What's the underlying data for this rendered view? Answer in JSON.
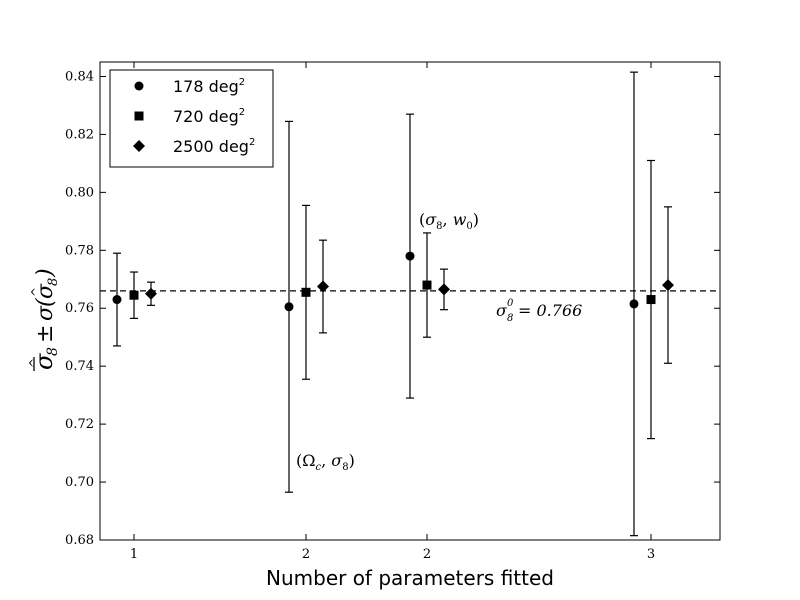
{
  "chart_data": {
    "type": "scatter",
    "title": "",
    "xlabel": "Number of parameters fitted",
    "ylabel": "σ̂̄₈ ± σ(σ̂₈)",
    "ylim": [
      0.68,
      0.845
    ],
    "yticks": [
      "0.68",
      "0.70",
      "0.72",
      "0.74",
      "0.76",
      "0.78",
      "0.80",
      "0.82",
      "0.84"
    ],
    "groups": [
      {
        "tick": "1",
        "annotation": ""
      },
      {
        "tick": "2",
        "annotation": "(Ωc, σ8)"
      },
      {
        "tick": "2",
        "annotation": "(σ8, w0)"
      },
      {
        "tick": "3",
        "annotation": ""
      }
    ],
    "series": [
      {
        "name": "178 deg2",
        "marker": "circle",
        "values": [
          0.763,
          0.7605,
          0.778,
          0.7615
        ],
        "errors": [
          0.016,
          0.064,
          0.049,
          0.08
        ]
      },
      {
        "name": "720 deg2",
        "marker": "square",
        "values": [
          0.7645,
          0.7655,
          0.768,
          0.763
        ],
        "errors": [
          0.008,
          0.03,
          0.018,
          0.048
        ]
      },
      {
        "name": "2500 deg2",
        "marker": "diamond",
        "values": [
          0.765,
          0.7675,
          0.7665,
          0.768
        ],
        "errors": [
          0.004,
          0.016,
          0.007,
          0.027
        ]
      }
    ],
    "reference_line": {
      "value": 0.766,
      "style": "dashed",
      "label": "σ₈⁰ = 0.766"
    },
    "legend": {
      "position": "top-left",
      "items": [
        "178 deg",
        "720 deg",
        "2500 deg"
      ],
      "superscript": "2"
    },
    "grid": false
  }
}
